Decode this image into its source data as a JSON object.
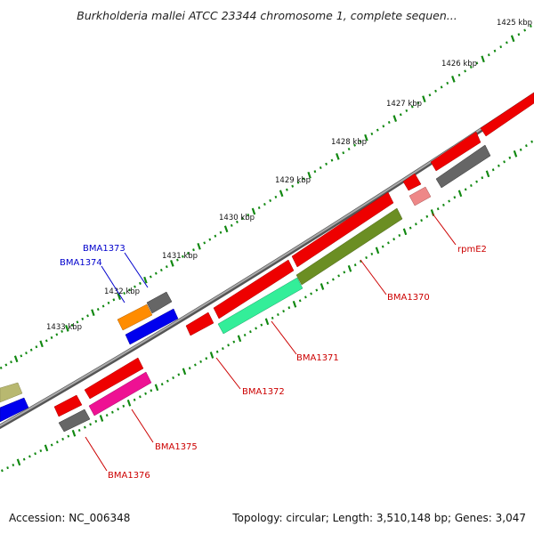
{
  "title": "Burkholderia mallei ATCC 23344 chromosome 1, complete sequen...",
  "footer": {
    "accession": "Accession: NC_006348",
    "topology": "Topology: circular; Length: 3,510,148 bp; Genes: 3,047"
  },
  "scale_labels": [
    "1425 kbp",
    "1426 kbp",
    "1427 kbp",
    "1428 kbp",
    "1429 kbp",
    "1430 kbp",
    "1431 kbp",
    "1432 kbp",
    "1433 kbp"
  ],
  "gene_labels": {
    "rpmE2": "rpmE2",
    "bma1370": "BMA1370",
    "bma1371": "BMA1371",
    "bma1372": "BMA1372",
    "bma1373": "BMA1373",
    "bma1374": "BMA1374",
    "bma1375": "BMA1375",
    "bma1376": "BMA1376"
  },
  "colors": {
    "red": "#ee0000",
    "olive": "#6b8e23",
    "aqua": "#33ee99",
    "gray": "#666666",
    "orange": "#ff8c00",
    "blue": "#0000ee",
    "magenta": "#ee1193",
    "pink": "#ee8888",
    "khaki": "#b8b870",
    "backbone": "#888888",
    "tick": "#118811"
  }
}
